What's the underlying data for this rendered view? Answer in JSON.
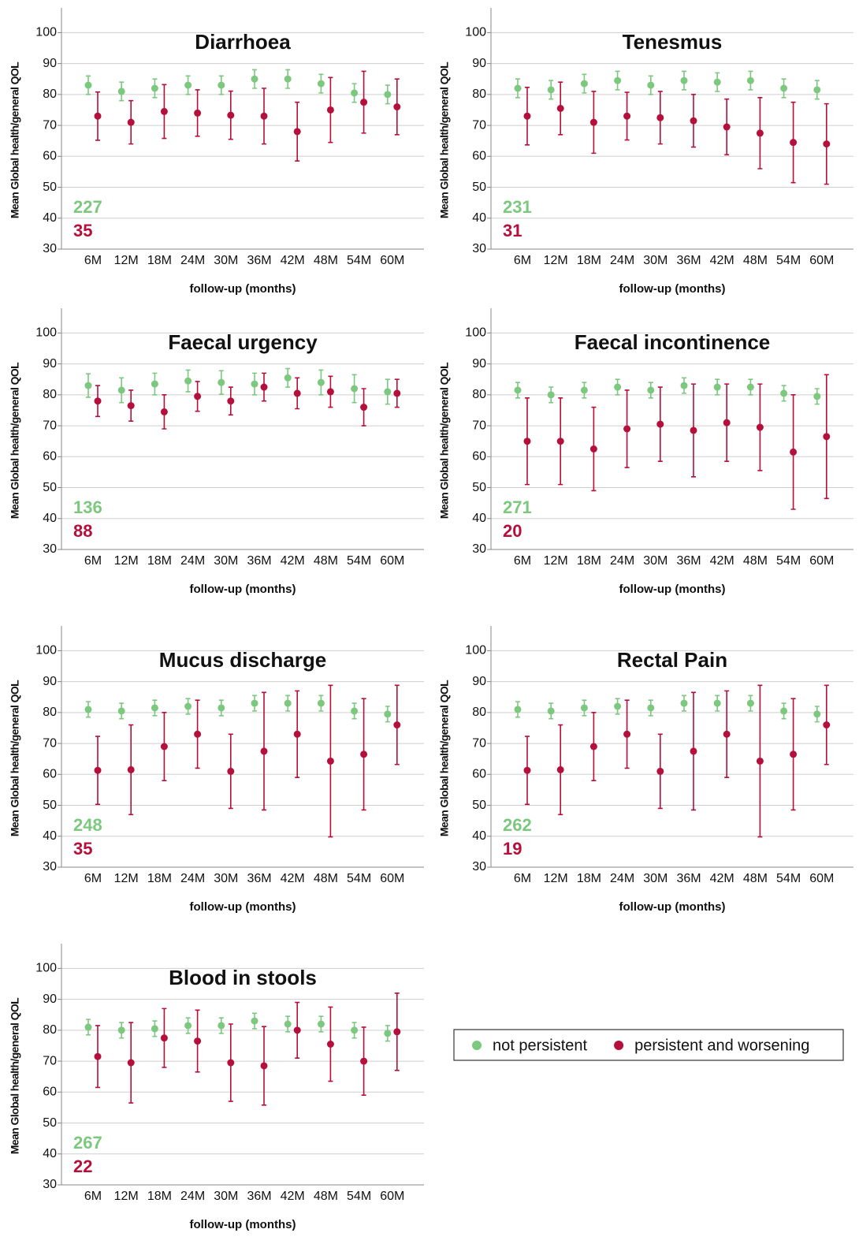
{
  "chart_data": [
    {
      "type": "errorbar",
      "title": "Diarrhoea",
      "xlabel": "follow-up (months)",
      "ylabel": "Mean Global health/general QOL",
      "categories": [
        "6M",
        "12M",
        "18M",
        "24M",
        "30M",
        "36M",
        "42M",
        "48M",
        "54M",
        "60M"
      ],
      "ylim": [
        30,
        108
      ],
      "yticks": [
        30,
        40,
        50,
        60,
        70,
        80,
        90,
        100
      ],
      "grid": true,
      "series": [
        {
          "color": "#7dc87f",
          "n": 227,
          "values": [
            83,
            81,
            82,
            83,
            83,
            85,
            85,
            83.5,
            80.5,
            80
          ],
          "errors": [
            3,
            3,
            3,
            3,
            3,
            3,
            3,
            3,
            3,
            3
          ]
        },
        {
          "color": "#b5103c",
          "n": 35,
          "values": [
            73,
            71,
            74.5,
            74,
            73.3,
            73,
            68,
            75,
            77.5,
            76
          ],
          "errors": [
            7.8,
            7,
            8.7,
            7.5,
            7.8,
            9,
            9.5,
            10.5,
            10,
            9
          ]
        }
      ]
    },
    {
      "type": "errorbar",
      "title": "Tenesmus",
      "xlabel": "follow-up (months)",
      "ylabel": "Mean Global health/general QOL",
      "categories": [
        "6M",
        "12M",
        "18M",
        "24M",
        "30M",
        "36M",
        "42M",
        "48M",
        "54M",
        "60M"
      ],
      "ylim": [
        30,
        108
      ],
      "yticks": [
        30,
        40,
        50,
        60,
        70,
        80,
        90,
        100
      ],
      "grid": true,
      "series": [
        {
          "color": "#7dc87f",
          "n": 231,
          "values": [
            82,
            81.5,
            83.5,
            84.5,
            83,
            84.5,
            84,
            84.5,
            82,
            81.5
          ],
          "errors": [
            3,
            3,
            3,
            3,
            3,
            3,
            3,
            3,
            3,
            3
          ]
        },
        {
          "color": "#b5103c",
          "n": 31,
          "values": [
            73,
            75.5,
            71,
            73,
            72.5,
            71.5,
            69.5,
            67.5,
            64.5,
            64
          ],
          "errors": [
            9.3,
            8.5,
            10,
            7.7,
            8.5,
            8.5,
            9,
            11.5,
            13,
            13
          ]
        }
      ]
    },
    {
      "type": "errorbar",
      "title": "Faecal urgency",
      "xlabel": "follow-up (months)",
      "ylabel": "Mean Global health/general QOL",
      "categories": [
        "6M",
        "12M",
        "18M",
        "24M",
        "30M",
        "36M",
        "42M",
        "48M",
        "54M",
        "60M"
      ],
      "ylim": [
        30,
        108
      ],
      "yticks": [
        30,
        40,
        50,
        60,
        70,
        80,
        90,
        100
      ],
      "grid": true,
      "series": [
        {
          "color": "#7dc87f",
          "n": 136,
          "values": [
            83,
            81.5,
            83.5,
            84.5,
            84,
            83.5,
            85.5,
            84,
            82,
            81
          ],
          "errors": [
            3.8,
            4,
            3.5,
            3.5,
            3.8,
            3.5,
            3,
            4,
            4.5,
            4
          ]
        },
        {
          "color": "#b5103c",
          "n": 88,
          "values": [
            78,
            76.5,
            74.5,
            79.5,
            78,
            82.5,
            80.5,
            81,
            76,
            80.5
          ],
          "errors": [
            5,
            5,
            5.5,
            4.8,
            4.5,
            4.5,
            5,
            5,
            6,
            4.5
          ]
        }
      ]
    },
    {
      "type": "errorbar",
      "title": "Faecal incontinence",
      "xlabel": "follow-up (months)",
      "ylabel": "Mean Global health/general QOL",
      "categories": [
        "6M",
        "12M",
        "18M",
        "24M",
        "30M",
        "36M",
        "42M",
        "48M",
        "54M",
        "60M"
      ],
      "ylim": [
        30,
        108
      ],
      "yticks": [
        30,
        40,
        50,
        60,
        70,
        80,
        90,
        100
      ],
      "grid": true,
      "series": [
        {
          "color": "#7dc87f",
          "n": 271,
          "values": [
            81.5,
            80,
            81.5,
            82.5,
            81.5,
            83,
            82.5,
            82.5,
            80.5,
            79.5
          ],
          "errors": [
            2.5,
            2.5,
            2.5,
            2.5,
            2.5,
            2.5,
            2.5,
            2.5,
            2.5,
            2.5
          ]
        },
        {
          "color": "#b5103c",
          "n": 20,
          "values": [
            65,
            65,
            62.5,
            69,
            70.5,
            68.5,
            71,
            69.5,
            61.5,
            66.5
          ],
          "errors": [
            14,
            14,
            13.5,
            12.5,
            12,
            15,
            12.5,
            14,
            18.5,
            20
          ]
        }
      ]
    },
    {
      "type": "errorbar",
      "title": "Mucus discharge",
      "xlabel": "follow-up (months)",
      "ylabel": "Mean Global health/general QOL",
      "categories": [
        "6M",
        "12M",
        "18M",
        "24M",
        "30M",
        "36M",
        "42M",
        "48M",
        "54M",
        "60M"
      ],
      "ylim": [
        30,
        108
      ],
      "yticks": [
        30,
        40,
        50,
        60,
        70,
        80,
        90,
        100
      ],
      "grid": true,
      "series": [
        {
          "color": "#7dc87f",
          "n": 248,
          "values": [
            81,
            80.5,
            81.5,
            82,
            81.5,
            83,
            83,
            83,
            80.5,
            79.5
          ],
          "errors": [
            2.5,
            2.5,
            2.5,
            2.5,
            2.5,
            2.5,
            2.5,
            2.5,
            2.5,
            2.5
          ]
        },
        {
          "color": "#b5103c",
          "n": 35,
          "values": [
            61.3,
            61.5,
            69,
            73,
            61,
            67.5,
            73,
            64.3,
            66.5,
            76
          ],
          "errors": [
            11,
            14.5,
            11,
            11,
            12,
            19,
            14,
            24.5,
            18,
            12.8
          ]
        }
      ]
    },
    {
      "type": "errorbar",
      "title": "Rectal Pain",
      "xlabel": "follow-up (months)",
      "ylabel": "Mean Global health/general QOL",
      "categories": [
        "6M",
        "12M",
        "18M",
        "24M",
        "30M",
        "36M",
        "42M",
        "48M",
        "54M",
        "60M"
      ],
      "ylim": [
        30,
        108
      ],
      "yticks": [
        30,
        40,
        50,
        60,
        70,
        80,
        90,
        100
      ],
      "grid": true,
      "series": [
        {
          "color": "#7dc87f",
          "n": 262,
          "values": [
            81,
            80.5,
            81.5,
            82,
            81.5,
            83,
            83,
            83,
            80.5,
            79.5
          ],
          "errors": [
            2.5,
            2.5,
            2.5,
            2.5,
            2.5,
            2.5,
            2.5,
            2.5,
            2.5,
            2.5
          ]
        },
        {
          "color": "#b5103c",
          "n": 19,
          "values": [
            61.3,
            61.5,
            69,
            73,
            61,
            67.5,
            73,
            64.3,
            66.5,
            76
          ],
          "errors": [
            11,
            14.5,
            11,
            11,
            12,
            19,
            14,
            24.5,
            18,
            12.8
          ]
        }
      ]
    },
    {
      "type": "errorbar",
      "title": "Blood in stools",
      "xlabel": "follow-up (months)",
      "ylabel": "Mean Global health/general QOL",
      "categories": [
        "6M",
        "12M",
        "18M",
        "24M",
        "30M",
        "36M",
        "42M",
        "48M",
        "54M",
        "60M"
      ],
      "ylim": [
        30,
        108
      ],
      "yticks": [
        30,
        40,
        50,
        60,
        70,
        80,
        90,
        100
      ],
      "grid": true,
      "series": [
        {
          "name": "not persistent",
          "color": "#7dc87f",
          "n": 267,
          "values": [
            81,
            80,
            80.5,
            81.5,
            81.5,
            83,
            82,
            82,
            80,
            79
          ],
          "errors": [
            2.5,
            2.5,
            2.5,
            2.5,
            2.5,
            2.5,
            2.5,
            2.5,
            2.5,
            2.5
          ]
        },
        {
          "name": "persistent and worsening",
          "color": "#b5103c",
          "n": 22,
          "values": [
            71.5,
            69.5,
            77.5,
            76.5,
            69.5,
            68.5,
            80,
            75.5,
            70,
            79.5
          ],
          "errors": [
            10,
            13,
            9.5,
            10,
            12.5,
            12.7,
            9,
            12,
            11,
            12.5
          ]
        }
      ]
    }
  ]
}
